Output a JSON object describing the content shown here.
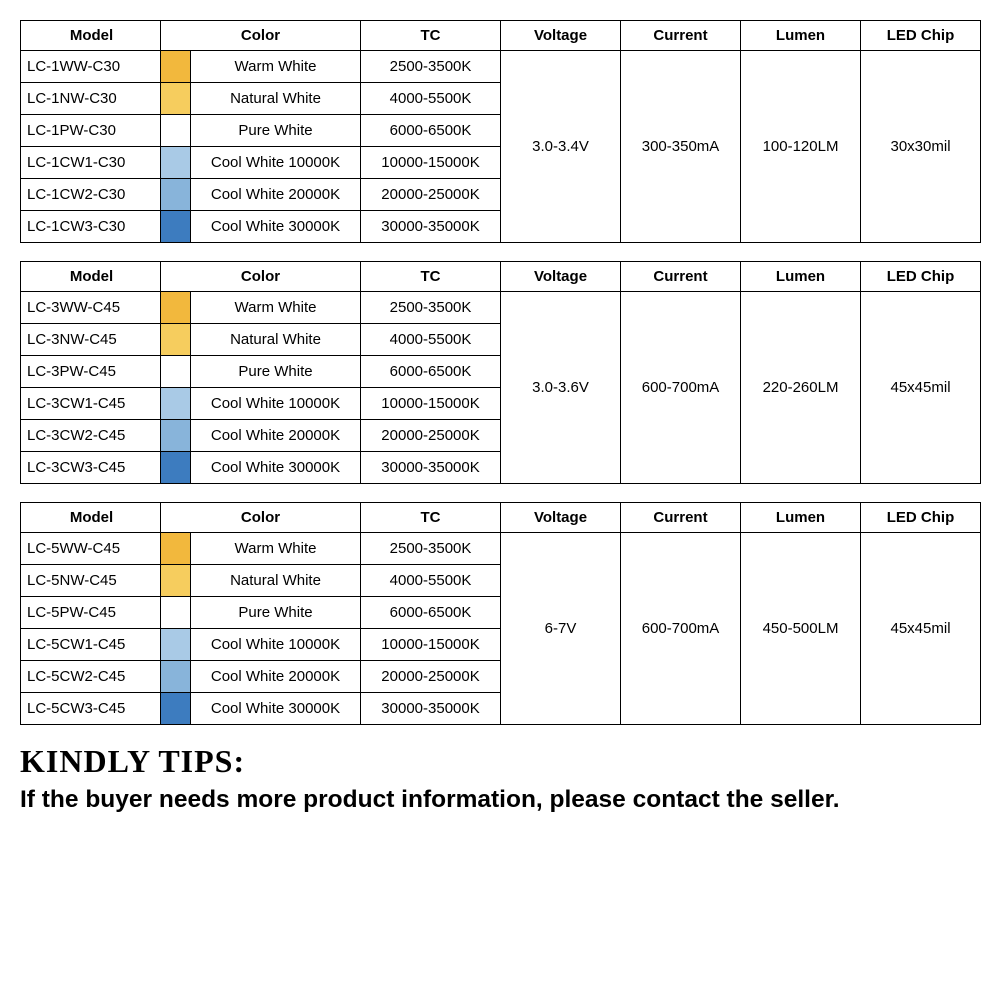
{
  "common": {
    "headers": {
      "model": "Model",
      "color": "Color",
      "tc": "TC",
      "voltage": "Voltage",
      "current": "Current",
      "lumen": "Lumen",
      "chip": "LED Chip"
    },
    "color_variants": [
      {
        "swatch": "#f2b83d",
        "name": "Warm White",
        "tc": "2500-3500K"
      },
      {
        "swatch": "#f6cd5e",
        "name": "Natural White",
        "tc": "4000-5500K"
      },
      {
        "swatch": "#ffffff",
        "name": "Pure White",
        "tc": "6000-6500K"
      },
      {
        "swatch": "#a9cae6",
        "name": "Cool White 10000K",
        "tc": "10000-15000K"
      },
      {
        "swatch": "#88b4da",
        "name": "Cool White 20000K",
        "tc": "20000-25000K"
      },
      {
        "swatch": "#3d7cbf",
        "name": "Cool White 30000K",
        "tc": "30000-35000K"
      }
    ]
  },
  "tables": [
    {
      "models": [
        "LC-1WW-C30",
        "LC-1NW-C30",
        "LC-1PW-C30",
        "LC-1CW1-C30",
        "LC-1CW2-C30",
        "LC-1CW3-C30"
      ],
      "voltage": "3.0-3.4V",
      "current": "300-350mA",
      "lumen": "100-120LM",
      "chip": "30x30mil"
    },
    {
      "models": [
        "LC-3WW-C45",
        "LC-3NW-C45",
        "LC-3PW-C45",
        "LC-3CW1-C45",
        "LC-3CW2-C45",
        "LC-3CW3-C45"
      ],
      "voltage": "3.0-3.6V",
      "current": "600-700mA",
      "lumen": "220-260LM",
      "chip": "45x45mil"
    },
    {
      "models": [
        "LC-5WW-C45",
        "LC-5NW-C45",
        "LC-5PW-C45",
        "LC-5CW1-C45",
        "LC-5CW2-C45",
        "LC-5CW3-C45"
      ],
      "voltage": "6-7V",
      "current": "600-700mA",
      "lumen": "450-500LM",
      "chip": "45x45mil"
    }
  ],
  "tips": {
    "title": "KINDLY TIPS:",
    "text": "If the buyer needs more product information, please contact the seller."
  },
  "column_widths": {
    "model": 140,
    "swatch": 30,
    "colorname": 170,
    "tc": 140,
    "voltage": 120,
    "current": 120,
    "lumen": 120,
    "chip": 120
  },
  "border_color": "#000000",
  "background_color": "#ffffff",
  "font_sizes": {
    "cell": 15,
    "tips_title": 32,
    "tips_text": 24.5
  }
}
